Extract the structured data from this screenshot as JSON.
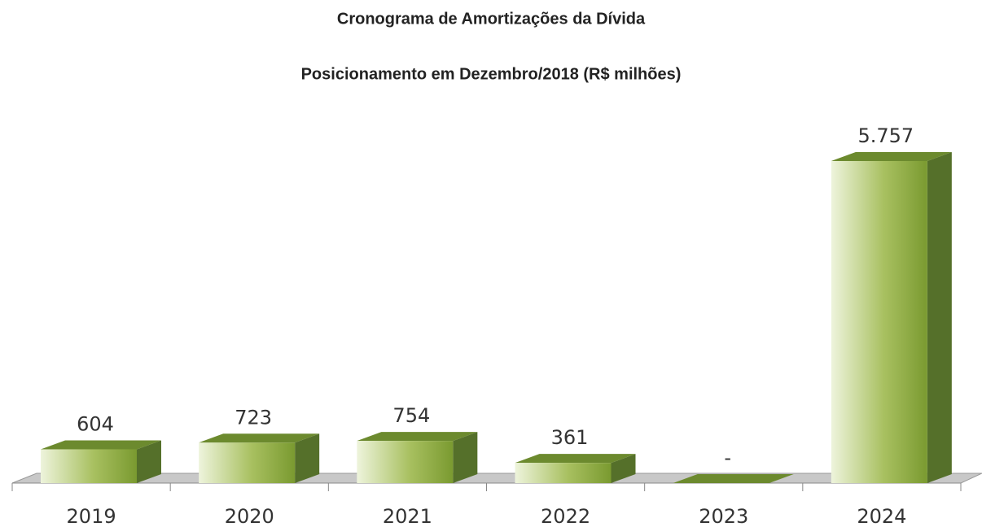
{
  "chart_data": {
    "type": "bar3d",
    "title": "Cronograma de Amortizações da Dívida",
    "subtitle": "Posicionamento em Dezembro/2018 (R$ milhões)",
    "categories": [
      "2019",
      "2020",
      "2021",
      "2022",
      "2023",
      "2024"
    ],
    "values": [
      604,
      723,
      754,
      361,
      0,
      5757
    ],
    "value_labels": [
      "604",
      "723",
      "754",
      "361",
      "-",
      "5.757"
    ],
    "color": "#7a9a30"
  }
}
